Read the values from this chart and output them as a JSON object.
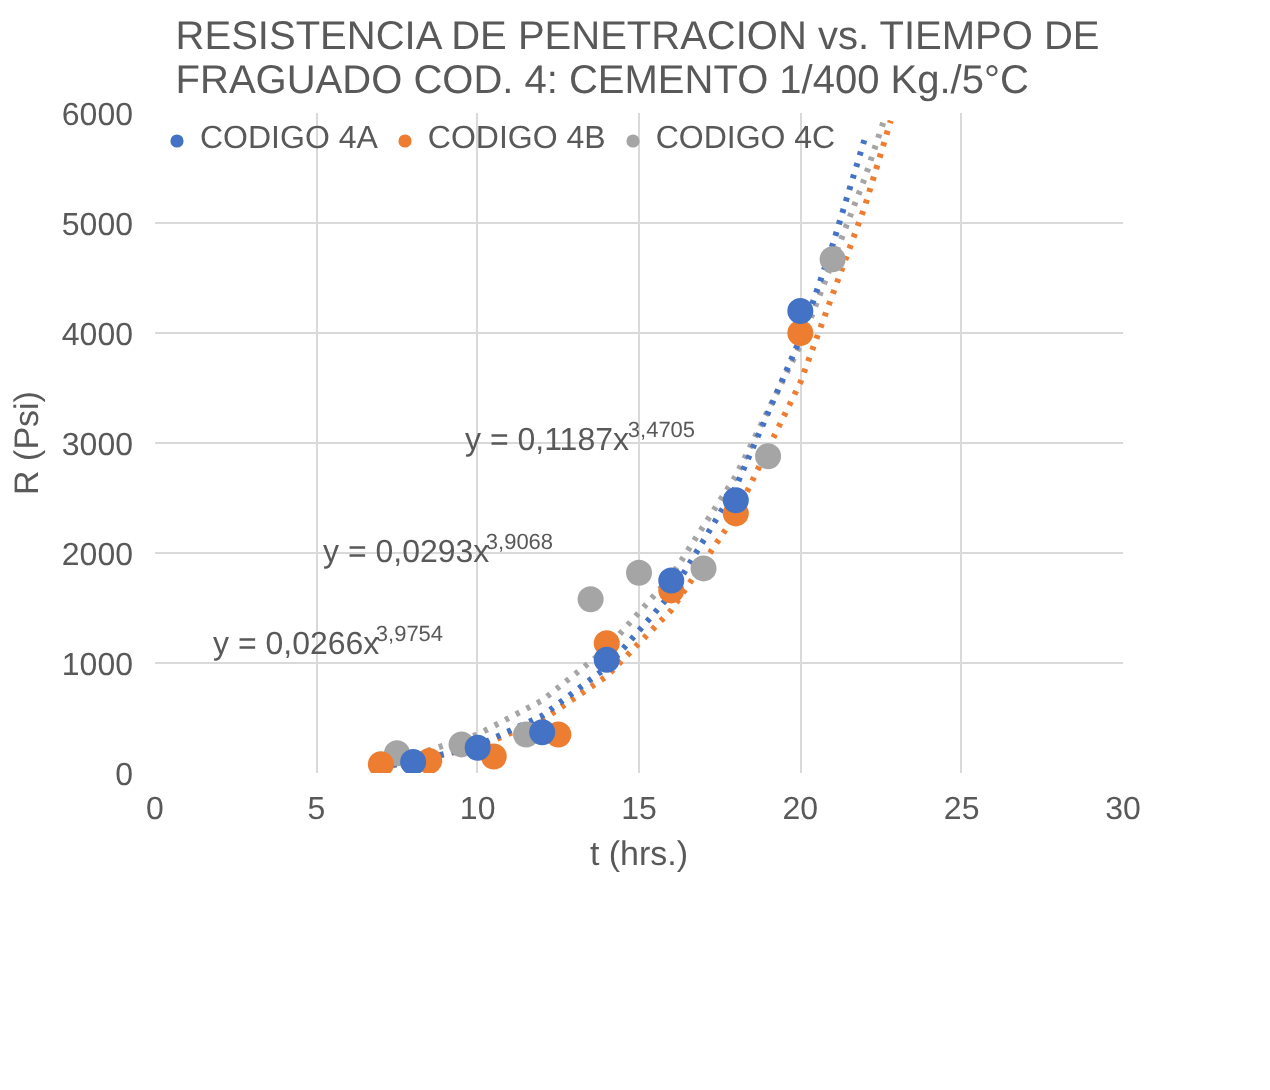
{
  "chart_data": {
    "type": "scatter",
    "title": "RESISTENCIA DE PENETRACION vs. TIEMPO DE FRAGUADO COD. 4: CEMENTO 1/400 Kg./5°C",
    "xlabel": "t (hrs.)",
    "ylabel": "R (Psi)",
    "xlim": [
      0,
      30
    ],
    "xticks": [
      0,
      5,
      10,
      15,
      20,
      25,
      30
    ],
    "ylim": [
      0,
      6000
    ],
    "yticks": [
      0,
      1000,
      2000,
      3000,
      4000,
      5000,
      6000
    ],
    "grid": true,
    "legend": "top left",
    "marker": "circle",
    "series": [
      {
        "name": "CODIGO 4A",
        "color": "#4472c4",
        "x": [
          8,
          10,
          12,
          14,
          16,
          18,
          20
        ],
        "values": [
          100,
          230,
          370,
          1030,
          1750,
          2480,
          4200
        ]
      },
      {
        "name": "CODIGO 4B",
        "color": "#ed7d31",
        "x": [
          7,
          8.5,
          10.5,
          12.5,
          14,
          16,
          18,
          20
        ],
        "values": [
          80,
          110,
          150,
          350,
          1180,
          1660,
          2360,
          4000
        ]
      },
      {
        "name": "CODIGO 4C",
        "color": "#a5a5a5",
        "x": [
          7.5,
          9.5,
          11.5,
          13.5,
          15,
          17,
          19,
          21
        ],
        "values": [
          180,
          260,
          350,
          1580,
          1820,
          1860,
          2880,
          4670
        ]
      },
      {
        "type": "line",
        "line_style": "dotted",
        "marker": "none",
        "color": "#4472c4",
        "x": [
          7,
          8,
          10,
          12,
          14,
          16,
          18,
          20,
          21,
          22
        ],
        "values": [
          60,
          100,
          250,
          520,
          960,
          1630,
          2600,
          3950,
          4800,
          5770
        ]
      },
      {
        "type": "line",
        "line_style": "dotted",
        "marker": "none",
        "color": "#ed7d31",
        "x": [
          7,
          8,
          10,
          12,
          14,
          16,
          18,
          20,
          22,
          22.8
        ],
        "values": [
          60,
          100,
          240,
          480,
          880,
          1480,
          2350,
          3550,
          5150,
          5930
        ]
      },
      {
        "type": "line",
        "line_style": "dotted",
        "marker": "none",
        "color": "#a5a5a5",
        "x": [
          7,
          8,
          10,
          12,
          14,
          16,
          18,
          20,
          22,
          22.6
        ],
        "values": [
          100,
          160,
          350,
          660,
          1130,
          1790,
          2700,
          3890,
          5410,
          5940
        ]
      }
    ],
    "annotations": [
      "y = 0,1187x$^{3,4705}$",
      "y = 0,0293x$^{3,9068}$",
      "y = 0,0266x$^{3,9754}$"
    ]
  }
}
